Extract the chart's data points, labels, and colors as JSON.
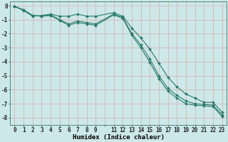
{
  "xlabel": "Humidex (Indice chaleur)",
  "background_color": "#cce8e8",
  "grid_color": "#aacccc",
  "line_color": "#2a7a6a",
  "xlim": [
    -0.5,
    23.5
  ],
  "ylim": [
    -8.5,
    0.3
  ],
  "yticks": [
    0,
    -1,
    -2,
    -3,
    -4,
    -5,
    -6,
    -7,
    -8
  ],
  "xtick_labels": [
    "0",
    "1",
    "2",
    "3",
    "4",
    "5",
    "6",
    "7",
    "8",
    "9",
    "",
    "11",
    "12",
    "13",
    "14",
    "15",
    "16",
    "17",
    "18",
    "19",
    "20",
    "21",
    "22",
    "23"
  ],
  "xtick_positions": [
    0,
    1,
    2,
    3,
    4,
    5,
    6,
    7,
    8,
    9,
    10,
    11,
    12,
    13,
    14,
    15,
    16,
    17,
    18,
    19,
    20,
    21,
    22,
    23
  ],
  "line1_x": [
    0,
    1,
    2,
    3,
    4,
    5,
    6,
    7,
    8,
    9,
    11,
    12,
    13,
    14,
    15,
    16,
    17,
    18,
    19,
    20,
    21,
    22,
    23
  ],
  "line1_y": [
    -0.05,
    -0.35,
    -0.75,
    -0.7,
    -0.6,
    -0.75,
    -0.75,
    -0.6,
    -0.75,
    -0.75,
    -0.5,
    -0.75,
    -1.6,
    -2.3,
    -3.1,
    -4.1,
    -5.1,
    -5.8,
    -6.3,
    -6.6,
    -6.9,
    -6.9,
    -7.6
  ],
  "line2_x": [
    0,
    1,
    2,
    3,
    4,
    5,
    6,
    7,
    8,
    9,
    11,
    12,
    13,
    14,
    15,
    16,
    17,
    18,
    19,
    20,
    21,
    22,
    23
  ],
  "line2_y": [
    -0.05,
    -0.3,
    -0.7,
    -0.75,
    -0.65,
    -1.0,
    -1.3,
    -1.1,
    -1.2,
    -1.3,
    -0.6,
    -0.85,
    -2.0,
    -2.8,
    -3.8,
    -5.0,
    -5.9,
    -6.4,
    -6.8,
    -7.0,
    -7.05,
    -7.1,
    -7.8
  ],
  "line3_x": [
    0,
    1,
    2,
    3,
    4,
    5,
    6,
    7,
    8,
    9,
    11,
    12,
    13,
    14,
    15,
    16,
    17,
    18,
    19,
    20,
    21,
    22,
    23
  ],
  "line3_y": [
    -0.05,
    -0.3,
    -0.7,
    -0.75,
    -0.7,
    -1.05,
    -1.4,
    -1.2,
    -1.3,
    -1.4,
    -0.65,
    -0.9,
    -2.1,
    -3.0,
    -4.05,
    -5.2,
    -6.1,
    -6.6,
    -7.0,
    -7.1,
    -7.15,
    -7.2,
    -7.9
  ],
  "markersize": 2.0,
  "linewidth": 0.8,
  "fontsize_xlabel": 6.5,
  "fontsize_ticks": 5.5
}
